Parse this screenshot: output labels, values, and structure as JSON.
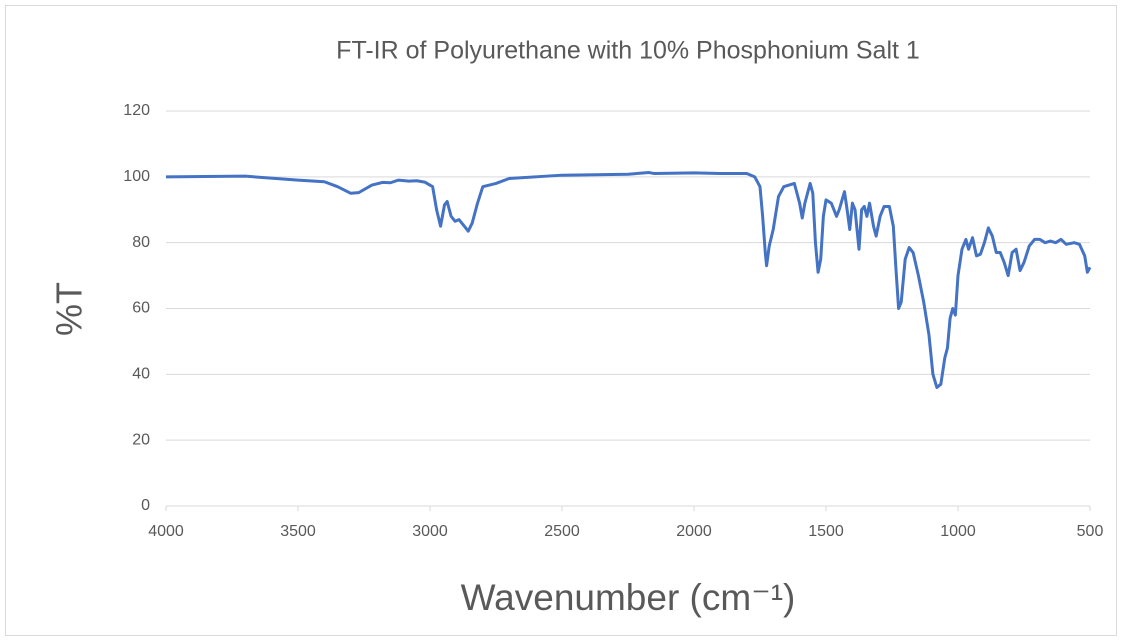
{
  "chart_data": {
    "type": "line",
    "title": "FT-IR of Polyurethane with 10% Phosphonium Salt 1",
    "x_label": "Wavenumber (cm⁻¹)",
    "y_label": "%T",
    "xlim": [
      4000,
      500
    ],
    "xticks": [
      4000,
      3500,
      3000,
      2500,
      2000,
      1500,
      1000,
      500
    ],
    "ylim": [
      0,
      120
    ],
    "yticks": [
      0,
      20,
      40,
      60,
      80,
      100,
      120
    ],
    "grid": true,
    "x": [
      4000,
      3700,
      3500,
      3400,
      3350,
      3300,
      3270,
      3220,
      3180,
      3150,
      3120,
      3080,
      3050,
      3020,
      2990,
      2975,
      2960,
      2945,
      2935,
      2920,
      2905,
      2890,
      2870,
      2855,
      2840,
      2820,
      2800,
      2750,
      2700,
      2500,
      2250,
      2170,
      2150,
      2000,
      1900,
      1800,
      1770,
      1750,
      1740,
      1730,
      1725,
      1715,
      1700,
      1680,
      1660,
      1620,
      1600,
      1590,
      1580,
      1560,
      1550,
      1540,
      1530,
      1520,
      1510,
      1500,
      1480,
      1460,
      1450,
      1430,
      1420,
      1410,
      1400,
      1390,
      1375,
      1365,
      1355,
      1345,
      1335,
      1320,
      1310,
      1295,
      1280,
      1260,
      1245,
      1235,
      1225,
      1215,
      1200,
      1185,
      1170,
      1150,
      1130,
      1110,
      1095,
      1080,
      1065,
      1050,
      1040,
      1030,
      1020,
      1010,
      1000,
      985,
      970,
      960,
      945,
      930,
      915,
      900,
      885,
      870,
      855,
      840,
      825,
      810,
      795,
      780,
      765,
      750,
      730,
      710,
      690,
      670,
      650,
      630,
      610,
      590,
      560,
      540,
      520,
      510,
      500
    ],
    "series": [
      {
        "name": "%T",
        "color": "#4472c4",
        "values": [
          100,
          100.2,
          99,
          98.5,
          97,
          95,
          95.2,
          97.5,
          98.3,
          98.2,
          99,
          98.7,
          98.8,
          98.4,
          97,
          90,
          85,
          91.5,
          92.5,
          88,
          86.5,
          87,
          85,
          83.5,
          86,
          92,
          97,
          98,
          99.5,
          100.5,
          100.8,
          101.3,
          101,
          101.2,
          101,
          101,
          100,
          97,
          88,
          77,
          73,
          79,
          84,
          94,
          97,
          98,
          92,
          87.5,
          92,
          98,
          95,
          80,
          71,
          75,
          88,
          93,
          92,
          88,
          90,
          95.5,
          90,
          84,
          92,
          90,
          78,
          90,
          91,
          88,
          92,
          85,
          82,
          88,
          91,
          91,
          85,
          72,
          60,
          62,
          75,
          78.5,
          77,
          70,
          62,
          52,
          40,
          36,
          37,
          45,
          48,
          57,
          60,
          58,
          70,
          78,
          81,
          78,
          81.5,
          76,
          76.5,
          80,
          84.5,
          82,
          77,
          77,
          74,
          70,
          77,
          78,
          71.5,
          74,
          79,
          81,
          81,
          80,
          80.5,
          80,
          81,
          79.5,
          80,
          79.5,
          76,
          71,
          72.5
        ]
      }
    ]
  }
}
